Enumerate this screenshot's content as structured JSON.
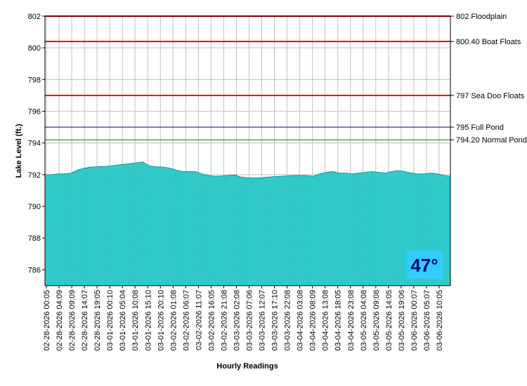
{
  "chart_data": {
    "type": "area",
    "xlabel": "Hourly Readings",
    "ylabel": "Lake Level (ft.)",
    "ylim": [
      785,
      802
    ],
    "yticks": [
      786,
      788,
      790,
      792,
      794,
      796,
      798,
      800,
      802
    ],
    "grid": true,
    "x_tick_labels": [
      "02-28-2026 00:05",
      "02-28-2026 04:09",
      "02-28-2026 09:09",
      "02-28-2026 14:07",
      "02-28-2026 19:05",
      "03-01-2026 00:10",
      "03-01-2026 05:04",
      "03-01-2026 10:08",
      "03-01-2026 15:10",
      "03-01-2026 20:10",
      "03-02-2026 01:08",
      "03-02-2026 06:07",
      "03-02-2026 11:07",
      "03-02-2026 16:05",
      "03-02-2026 21:08",
      "03-03-2026 02:08",
      "03-03-2026 07:06",
      "03-03-2026 12:07",
      "03-03-2026 17:10",
      "03-03-2026 22:08",
      "03-04-2026 03:08",
      "03-04-2026 08:09",
      "03-04-2026 13:08",
      "03-04-2026 18:05",
      "03-04-2026 23:08",
      "03-05-2026 04:08",
      "03-05-2026 09:08",
      "03-05-2026 14:05",
      "03-05-2026 19:06",
      "03-06-2026 00:07",
      "03-06-2026 05:07",
      "03-06-2026 10:05"
    ],
    "series": [
      {
        "values": [
          792.0,
          792.0,
          792.05,
          792.05,
          792.1,
          792.3,
          792.4,
          792.48,
          792.5,
          792.52,
          792.55,
          792.6,
          792.65,
          792.7,
          792.75,
          792.8,
          792.55,
          792.5,
          792.48,
          792.42,
          792.3,
          792.2,
          792.2,
          792.2,
          792.05,
          791.95,
          791.9,
          791.92,
          791.95,
          791.98,
          791.85,
          791.8,
          791.8,
          791.8,
          791.85,
          791.88,
          791.9,
          791.92,
          791.95,
          791.95,
          791.95,
          791.9,
          792.05,
          792.15,
          792.2,
          792.1,
          792.1,
          792.05,
          792.1,
          792.15,
          792.2,
          792.15,
          792.1,
          792.2,
          792.25,
          792.2,
          792.1,
          792.05,
          792.05,
          792.1,
          792.05,
          791.95,
          791.9
        ]
      }
    ],
    "reference_lines": [
      {
        "value": 802,
        "label": "802 Floodplain",
        "color": "#ff0000"
      },
      {
        "value": 800.4,
        "label": "800.40 Boat Floats",
        "color": "#ff0000"
      },
      {
        "value": 797,
        "label": "797 Sea Doo Floats",
        "color": "#ff0000"
      },
      {
        "value": 795,
        "label": "795 Full Pond",
        "color": "#000080"
      },
      {
        "value": 794.2,
        "label": "794.20 Normal Pond",
        "color": "#008000"
      }
    ],
    "fill_color": "#33cccc",
    "temperature_label": "47°",
    "temperature_bg": "#33ccff",
    "temperature_color": "#000080"
  }
}
